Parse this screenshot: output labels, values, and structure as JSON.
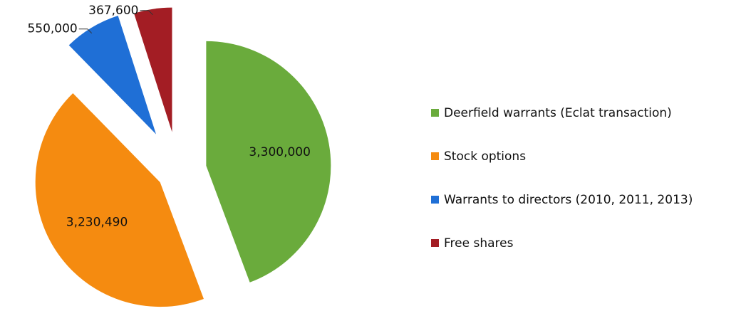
{
  "chart_data": {
    "type": "pie",
    "categories": [
      "Deerfield warrants (Eclat transaction)",
      "Stock options",
      "Warrants to directors (2010, 2011, 2013)",
      "Free shares"
    ],
    "values": [
      3300000,
      3230490,
      550000,
      367600
    ],
    "value_labels": [
      "3,300,000",
      "3,230,490",
      "550,000",
      "367,600"
    ],
    "colors": [
      "#6aab3c",
      "#f58b10",
      "#1f6fd6",
      "#a31d24"
    ],
    "legend": "right"
  }
}
